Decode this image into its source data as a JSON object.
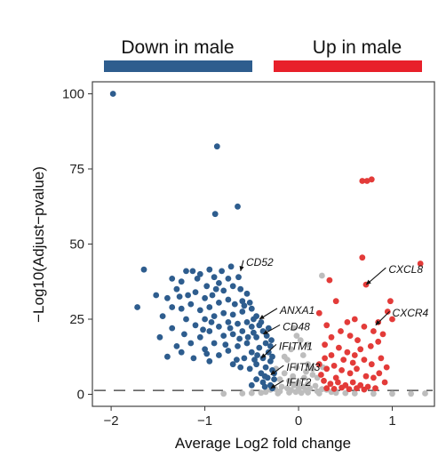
{
  "chart_data": {
    "type": "scatter",
    "title": "",
    "xlabel": "Average Log2 fold change",
    "ylabel": "−Log10(Adjust−pvalue)",
    "xlim": [
      -2.2,
      1.45
    ],
    "ylim": [
      -4,
      104
    ],
    "x_ticks": [
      -2,
      -1,
      0,
      1
    ],
    "x_tick_labels": [
      "−2",
      "−1",
      "0",
      "1"
    ],
    "y_ticks": [
      0,
      25,
      50,
      75,
      100
    ],
    "y_tick_labels": [
      "0",
      "25",
      "50",
      "75",
      "100"
    ],
    "threshold_y": 1.3,
    "grid": false,
    "legend": {
      "placement": "top",
      "items": [
        {
          "label": "Down in male",
          "color": "#2e5d8e"
        },
        {
          "label": "Up in male",
          "color": "#e8202a"
        }
      ]
    },
    "colors": {
      "down": "#2e5d8e",
      "up": "#e33b39",
      "ns": "#bdbdbd"
    },
    "series": [
      {
        "name": "Down in male",
        "color": "#2e5d8e",
        "points": [
          [
            -1.98,
            100
          ],
          [
            -0.87,
            82.5
          ],
          [
            -0.89,
            60
          ],
          [
            -0.65,
            62.5
          ],
          [
            -1.65,
            41.5
          ],
          [
            -1.72,
            29
          ],
          [
            -1.35,
            38.5
          ],
          [
            -1.2,
            41
          ],
          [
            -1.25,
            37.5
          ],
          [
            -1.3,
            35
          ],
          [
            -1.13,
            41
          ],
          [
            -1.05,
            40
          ],
          [
            -0.95,
            41.5
          ],
          [
            -0.9,
            39
          ],
          [
            -0.85,
            37
          ],
          [
            -0.75,
            38.5
          ],
          [
            -0.98,
            36
          ],
          [
            -1.1,
            34
          ],
          [
            -1.0,
            32
          ],
          [
            -0.92,
            33
          ],
          [
            -0.8,
            34.5
          ],
          [
            -0.7,
            36
          ],
          [
            -0.62,
            35
          ],
          [
            -0.55,
            33.5
          ],
          [
            -0.6,
            31
          ],
          [
            -0.68,
            30
          ],
          [
            -0.75,
            31.5
          ],
          [
            -0.85,
            30.5
          ],
          [
            -0.95,
            29
          ],
          [
            -1.05,
            28
          ],
          [
            -1.15,
            30
          ],
          [
            -1.25,
            28.5
          ],
          [
            -1.35,
            29
          ],
          [
            -1.2,
            25
          ],
          [
            -1.1,
            23
          ],
          [
            -1.0,
            25
          ],
          [
            -0.9,
            26
          ],
          [
            -0.8,
            27
          ],
          [
            -0.7,
            26.5
          ],
          [
            -0.6,
            27.5
          ],
          [
            -0.5,
            28.5
          ],
          [
            -0.45,
            26
          ],
          [
            -0.55,
            24
          ],
          [
            -0.65,
            23.5
          ],
          [
            -0.75,
            24
          ],
          [
            -0.85,
            22.5
          ],
          [
            -0.95,
            21
          ],
          [
            -1.05,
            19
          ],
          [
            -1.15,
            17
          ],
          [
            -1.25,
            14
          ],
          [
            -1.35,
            22
          ],
          [
            -1.3,
            16
          ],
          [
            -1.0,
            15
          ],
          [
            -0.9,
            17
          ],
          [
            -0.8,
            19.5
          ],
          [
            -0.7,
            20
          ],
          [
            -0.6,
            21
          ],
          [
            -0.5,
            22.5
          ],
          [
            -0.42,
            23
          ],
          [
            -0.38,
            21
          ],
          [
            -0.45,
            19
          ],
          [
            -0.55,
            17
          ],
          [
            -0.65,
            16
          ],
          [
            -0.75,
            14.5
          ],
          [
            -0.85,
            13
          ],
          [
            -0.95,
            11
          ],
          [
            -0.58,
            12
          ],
          [
            -0.5,
            14
          ],
          [
            -0.42,
            15.5
          ],
          [
            -0.35,
            17
          ],
          [
            -0.32,
            14
          ],
          [
            -0.38,
            12
          ],
          [
            -0.45,
            10
          ],
          [
            -0.52,
            8.5
          ],
          [
            -0.62,
            9
          ],
          [
            -0.7,
            10
          ],
          [
            -0.4,
            7
          ],
          [
            -0.35,
            9
          ],
          [
            -0.3,
            11
          ],
          [
            -0.28,
            8
          ],
          [
            -0.33,
            5.5
          ],
          [
            -0.38,
            4
          ],
          [
            -0.45,
            5
          ],
          [
            -0.5,
            3
          ],
          [
            -0.3,
            3
          ],
          [
            -0.26,
            5
          ],
          [
            -0.28,
            12.5
          ],
          [
            -0.3,
            16
          ],
          [
            -0.34,
            19.5
          ],
          [
            -0.4,
            24
          ],
          [
            -0.48,
            25
          ],
          [
            -0.58,
            29.5
          ],
          [
            -1.4,
            32
          ],
          [
            -1.45,
            26
          ],
          [
            -1.08,
            38.5
          ],
          [
            -0.82,
            41
          ],
          [
            -0.72,
            42.5
          ],
          [
            -0.64,
            39
          ],
          [
            -1.48,
            19
          ],
          [
            -1.52,
            33
          ],
          [
            -0.98,
            13.5
          ],
          [
            -1.22,
            20
          ],
          [
            -1.12,
            12
          ],
          [
            -0.66,
            11.5
          ],
          [
            -0.28,
            2
          ],
          [
            -0.36,
            2.5
          ],
          [
            -0.26,
            7
          ],
          [
            -0.29,
            18
          ],
          [
            -0.32,
            22
          ],
          [
            -0.48,
            20.5
          ],
          [
            -0.78,
            16.5
          ],
          [
            -1.18,
            33
          ],
          [
            -0.88,
            35
          ],
          [
            -0.52,
            30.5
          ],
          [
            -1.4,
            12.5
          ],
          [
            -0.54,
            19
          ],
          [
            -0.44,
            13
          ],
          [
            -0.36,
            6
          ],
          [
            -0.47,
            11.5
          ],
          [
            -0.63,
            18.5
          ],
          [
            -0.73,
            22
          ],
          [
            -0.93,
            24
          ],
          [
            -1.02,
            21.5
          ],
          [
            -1.27,
            32.5
          ]
        ]
      },
      {
        "name": "Up in male",
        "color": "#e33b39",
        "points": [
          [
            0.68,
            71
          ],
          [
            0.73,
            71
          ],
          [
            0.78,
            71.5
          ],
          [
            0.68,
            45.5
          ],
          [
            0.72,
            36.5
          ],
          [
            1.3,
            43.5
          ],
          [
            0.98,
            31
          ],
          [
            0.95,
            27.5
          ],
          [
            1.0,
            25
          ],
          [
            0.33,
            38
          ],
          [
            0.4,
            31
          ],
          [
            0.22,
            27
          ],
          [
            0.3,
            23
          ],
          [
            0.52,
            24
          ],
          [
            0.6,
            25
          ],
          [
            0.7,
            22.5
          ],
          [
            0.8,
            21
          ],
          [
            0.9,
            20
          ],
          [
            0.85,
            17.5
          ],
          [
            0.77,
            16
          ],
          [
            0.63,
            18
          ],
          [
            0.55,
            19.5
          ],
          [
            0.45,
            21
          ],
          [
            0.35,
            19
          ],
          [
            0.28,
            16.5
          ],
          [
            0.35,
            13
          ],
          [
            0.43,
            15.5
          ],
          [
            0.52,
            14
          ],
          [
            0.6,
            13
          ],
          [
            0.7,
            11.5
          ],
          [
            0.78,
            10
          ],
          [
            0.88,
            12
          ],
          [
            0.94,
            9
          ],
          [
            0.22,
            10
          ],
          [
            0.3,
            8.5
          ],
          [
            0.38,
            9.5
          ],
          [
            0.46,
            8
          ],
          [
            0.55,
            7
          ],
          [
            0.62,
            8.5
          ],
          [
            0.72,
            6
          ],
          [
            0.8,
            5.5
          ],
          [
            0.86,
            7
          ],
          [
            0.92,
            4
          ],
          [
            0.27,
            4.5
          ],
          [
            0.34,
            3.5
          ],
          [
            0.42,
            4
          ],
          [
            0.5,
            3
          ],
          [
            0.58,
            4
          ],
          [
            0.66,
            3
          ],
          [
            0.74,
            2.5
          ],
          [
            0.82,
            2
          ],
          [
            0.3,
            2
          ],
          [
            0.38,
            1.8
          ],
          [
            0.46,
            2.2
          ],
          [
            0.54,
            1.7
          ],
          [
            0.62,
            2
          ],
          [
            0.7,
            1.6
          ],
          [
            0.24,
            6.5
          ],
          [
            0.85,
            24
          ],
          [
            0.58,
            10.5
          ],
          [
            0.48,
            11.5
          ],
          [
            0.66,
            15
          ],
          [
            0.28,
            12
          ],
          [
            0.4,
            5.5
          ]
        ]
      },
      {
        "name": "",
        "color": "#bdbdbd",
        "points": [
          [
            0.25,
            39.5
          ],
          [
            -0.05,
            22
          ],
          [
            0.02,
            18
          ],
          [
            -0.08,
            15
          ],
          [
            0.05,
            13
          ],
          [
            -0.12,
            11.5
          ],
          [
            0.1,
            10
          ],
          [
            -0.02,
            9
          ],
          [
            0.08,
            7.5
          ],
          [
            -0.15,
            7
          ],
          [
            0.15,
            6.5
          ],
          [
            0.2,
            5.5
          ],
          [
            -0.2,
            5
          ],
          [
            -0.1,
            4.5
          ],
          [
            0.0,
            4
          ],
          [
            0.1,
            3.5
          ],
          [
            -0.05,
            3
          ],
          [
            0.05,
            2.5
          ],
          [
            -0.18,
            2.5
          ],
          [
            0.18,
            2.8
          ],
          [
            0.0,
            2.2
          ],
          [
            -0.12,
            2
          ],
          [
            0.12,
            2
          ],
          [
            -0.25,
            1.8
          ],
          [
            0.25,
            1.7
          ],
          [
            -0.3,
            1.5
          ],
          [
            0.3,
            1.5
          ],
          [
            -0.08,
            1.4
          ],
          [
            0.08,
            1.4
          ],
          [
            0.0,
            1.2
          ],
          [
            -0.2,
            1.0
          ],
          [
            0.2,
            1.0
          ],
          [
            -0.35,
            0.8
          ],
          [
            0.35,
            0.8
          ],
          [
            -0.1,
            0.6
          ],
          [
            0.1,
            0.6
          ],
          [
            -0.4,
            0.5
          ],
          [
            0.4,
            0.5
          ],
          [
            -0.5,
            0.4
          ],
          [
            0.5,
            0.4
          ],
          [
            -0.22,
            0.3
          ],
          [
            0.22,
            0.3
          ],
          [
            0.6,
            0.3
          ],
          [
            -0.6,
            0.3
          ],
          [
            0.8,
            0.2
          ],
          [
            1.0,
            0.2
          ],
          [
            1.2,
            0.2
          ],
          [
            1.35,
            0.3
          ],
          [
            -0.8,
            0.2
          ],
          [
            -0.03,
            0.8
          ],
          [
            0.03,
            0.5
          ],
          [
            0.15,
            8.5
          ],
          [
            -0.15,
            12.5
          ],
          [
            0.1,
            16.5
          ],
          [
            -0.02,
            19.5
          ],
          [
            0.06,
            5.5
          ],
          [
            -0.06,
            6
          ],
          [
            0.26,
            9
          ],
          [
            -0.24,
            8.5
          ]
        ]
      }
    ],
    "annotations": [
      {
        "label": "CD52",
        "point": [
          -0.62,
          41
        ],
        "label_pos": [
          -0.56,
          44
        ]
      },
      {
        "label": "ANXA1",
        "point": [
          -0.42,
          25
        ],
        "label_pos": [
          -0.2,
          28
        ]
      },
      {
        "label": "CD48",
        "point": [
          -0.38,
          20
        ],
        "label_pos": [
          -0.17,
          22.5
        ]
      },
      {
        "label": "IFITM1",
        "point": [
          -0.4,
          12
        ],
        "label_pos": [
          -0.21,
          16
        ]
      },
      {
        "label": "IFITM3",
        "point": [
          -0.3,
          6.5
        ],
        "label_pos": [
          -0.13,
          9
        ]
      },
      {
        "label": "IFIT2",
        "point": [
          -0.3,
          2
        ],
        "label_pos": [
          -0.13,
          4
        ]
      },
      {
        "label": "CXCL8",
        "point": [
          0.72,
          36.5
        ],
        "label_pos": [
          0.96,
          41.5
        ]
      },
      {
        "label": "CXCR4",
        "point": [
          0.82,
          23
        ],
        "label_pos": [
          1.0,
          27
        ]
      }
    ]
  }
}
